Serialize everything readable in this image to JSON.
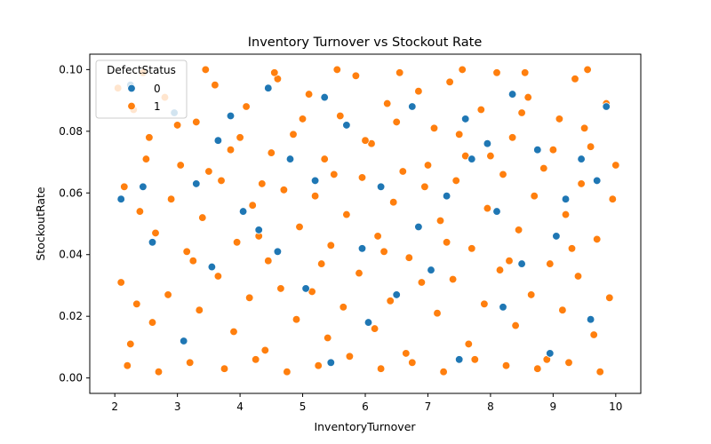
{
  "chart_data": {
    "type": "scatter",
    "title": "Inventory Turnover vs Stockout Rate",
    "xlabel": "InventoryTurnover",
    "ylabel": "StockoutRate",
    "xlim": [
      1.6,
      10.4
    ],
    "ylim": [
      -0.005,
      0.105
    ],
    "x_ticks": [
      2,
      3,
      4,
      5,
      6,
      7,
      8,
      9,
      10
    ],
    "y_ticks": [
      0.0,
      0.02,
      0.04,
      0.06,
      0.08,
      0.1
    ],
    "x_tick_labels": [
      "2",
      "3",
      "4",
      "5",
      "6",
      "7",
      "8",
      "9",
      "10"
    ],
    "y_tick_labels": [
      "0.00",
      "0.02",
      "0.04",
      "0.06",
      "0.08",
      "0.10"
    ],
    "grid": false,
    "legend": {
      "title": "DefectStatus",
      "position": "top-left",
      "entries": [
        {
          "label": "0",
          "color": "#1f77b4"
        },
        {
          "label": "1",
          "color": "#ff7f0e"
        }
      ]
    },
    "series": [
      {
        "name": "1",
        "color": "#ff7f0e",
        "points": [
          [
            2.05,
            0.094
          ],
          [
            2.3,
            0.087
          ],
          [
            2.55,
            0.078
          ],
          [
            2.8,
            0.091
          ],
          [
            3.05,
            0.069
          ],
          [
            3.3,
            0.083
          ],
          [
            3.6,
            0.095
          ],
          [
            3.85,
            0.074
          ],
          [
            4.1,
            0.088
          ],
          [
            4.35,
            0.063
          ],
          [
            4.6,
            0.097
          ],
          [
            4.85,
            0.079
          ],
          [
            5.1,
            0.092
          ],
          [
            5.35,
            0.071
          ],
          [
            5.6,
            0.085
          ],
          [
            5.85,
            0.098
          ],
          [
            6.1,
            0.076
          ],
          [
            6.35,
            0.089
          ],
          [
            6.6,
            0.067
          ],
          [
            6.85,
            0.093
          ],
          [
            7.1,
            0.081
          ],
          [
            7.35,
            0.096
          ],
          [
            7.6,
            0.072
          ],
          [
            7.85,
            0.087
          ],
          [
            8.1,
            0.099
          ],
          [
            8.35,
            0.078
          ],
          [
            8.6,
            0.091
          ],
          [
            8.85,
            0.068
          ],
          [
            9.1,
            0.084
          ],
          [
            9.35,
            0.097
          ],
          [
            9.6,
            0.075
          ],
          [
            9.85,
            0.089
          ],
          [
            2.15,
            0.062
          ],
          [
            2.4,
            0.054
          ],
          [
            2.65,
            0.047
          ],
          [
            2.9,
            0.058
          ],
          [
            3.15,
            0.041
          ],
          [
            3.4,
            0.052
          ],
          [
            3.7,
            0.064
          ],
          [
            3.95,
            0.044
          ],
          [
            4.2,
            0.056
          ],
          [
            4.45,
            0.038
          ],
          [
            4.7,
            0.061
          ],
          [
            4.95,
            0.049
          ],
          [
            5.2,
            0.059
          ],
          [
            5.45,
            0.043
          ],
          [
            5.7,
            0.053
          ],
          [
            5.95,
            0.065
          ],
          [
            6.2,
            0.046
          ],
          [
            6.45,
            0.057
          ],
          [
            6.7,
            0.039
          ],
          [
            6.95,
            0.062
          ],
          [
            7.2,
            0.051
          ],
          [
            7.45,
            0.064
          ],
          [
            7.7,
            0.042
          ],
          [
            7.95,
            0.055
          ],
          [
            8.2,
            0.066
          ],
          [
            8.45,
            0.048
          ],
          [
            8.7,
            0.059
          ],
          [
            8.95,
            0.037
          ],
          [
            9.2,
            0.053
          ],
          [
            9.45,
            0.063
          ],
          [
            9.7,
            0.045
          ],
          [
            9.95,
            0.058
          ],
          [
            2.1,
            0.031
          ],
          [
            2.35,
            0.024
          ],
          [
            2.6,
            0.018
          ],
          [
            2.85,
            0.027
          ],
          [
            3.1,
            0.012
          ],
          [
            3.35,
            0.022
          ],
          [
            3.65,
            0.033
          ],
          [
            3.9,
            0.015
          ],
          [
            4.15,
            0.026
          ],
          [
            4.4,
            0.009
          ],
          [
            4.65,
            0.029
          ],
          [
            4.9,
            0.019
          ],
          [
            5.15,
            0.028
          ],
          [
            5.4,
            0.013
          ],
          [
            5.65,
            0.023
          ],
          [
            5.9,
            0.034
          ],
          [
            6.15,
            0.016
          ],
          [
            6.4,
            0.025
          ],
          [
            6.65,
            0.008
          ],
          [
            6.9,
            0.031
          ],
          [
            7.15,
            0.021
          ],
          [
            7.4,
            0.032
          ],
          [
            7.65,
            0.011
          ],
          [
            7.9,
            0.024
          ],
          [
            8.15,
            0.035
          ],
          [
            8.4,
            0.017
          ],
          [
            8.65,
            0.027
          ],
          [
            8.9,
            0.006
          ],
          [
            9.15,
            0.022
          ],
          [
            9.4,
            0.033
          ],
          [
            9.65,
            0.014
          ],
          [
            9.9,
            0.026
          ],
          [
            2.2,
            0.004
          ],
          [
            2.7,
            0.002
          ],
          [
            3.2,
            0.005
          ],
          [
            3.75,
            0.003
          ],
          [
            4.25,
            0.006
          ],
          [
            4.75,
            0.002
          ],
          [
            5.25,
            0.004
          ],
          [
            5.75,
            0.007
          ],
          [
            6.25,
            0.003
          ],
          [
            6.75,
            0.005
          ],
          [
            7.25,
            0.002
          ],
          [
            7.75,
            0.006
          ],
          [
            8.25,
            0.004
          ],
          [
            8.75,
            0.003
          ],
          [
            9.25,
            0.005
          ],
          [
            9.75,
            0.002
          ],
          [
            2.5,
            0.071
          ],
          [
            3.0,
            0.082
          ],
          [
            3.5,
            0.067
          ],
          [
            4.0,
            0.078
          ],
          [
            4.5,
            0.073
          ],
          [
            5.0,
            0.084
          ],
          [
            5.5,
            0.066
          ],
          [
            6.0,
            0.077
          ],
          [
            6.5,
            0.083
          ],
          [
            7.0,
            0.069
          ],
          [
            7.5,
            0.079
          ],
          [
            8.0,
            0.072
          ],
          [
            8.5,
            0.086
          ],
          [
            9.0,
            0.074
          ],
          [
            9.5,
            0.081
          ],
          [
            10.0,
            0.069
          ],
          [
            2.25,
            0.011
          ],
          [
            3.25,
            0.038
          ],
          [
            4.3,
            0.046
          ],
          [
            5.3,
            0.037
          ],
          [
            6.3,
            0.041
          ],
          [
            7.3,
            0.044
          ],
          [
            8.3,
            0.038
          ],
          [
            9.3,
            0.042
          ],
          [
            2.45,
            0.099
          ],
          [
            3.45,
            0.1
          ],
          [
            4.55,
            0.099
          ],
          [
            5.55,
            0.1
          ],
          [
            6.55,
            0.099
          ],
          [
            7.55,
            0.1
          ],
          [
            8.55,
            0.099
          ],
          [
            9.55,
            0.1
          ]
        ]
      },
      {
        "name": "0",
        "color": "#1f77b4",
        "points": [
          [
            2.1,
            0.058
          ],
          [
            2.25,
            0.095
          ],
          [
            2.6,
            0.044
          ],
          [
            2.95,
            0.086
          ],
          [
            3.3,
            0.063
          ],
          [
            3.55,
            0.036
          ],
          [
            3.85,
            0.085
          ],
          [
            4.05,
            0.054
          ],
          [
            4.3,
            0.048
          ],
          [
            4.45,
            0.094
          ],
          [
            4.8,
            0.071
          ],
          [
            5.05,
            0.029
          ],
          [
            5.2,
            0.064
          ],
          [
            5.45,
            0.005
          ],
          [
            5.7,
            0.082
          ],
          [
            5.95,
            0.042
          ],
          [
            6.25,
            0.062
          ],
          [
            6.5,
            0.027
          ],
          [
            6.75,
            0.088
          ],
          [
            7.05,
            0.035
          ],
          [
            7.3,
            0.059
          ],
          [
            7.5,
            0.006
          ],
          [
            7.7,
            0.071
          ],
          [
            7.95,
            0.076
          ],
          [
            8.1,
            0.054
          ],
          [
            8.35,
            0.092
          ],
          [
            8.5,
            0.037
          ],
          [
            8.75,
            0.074
          ],
          [
            8.95,
            0.008
          ],
          [
            9.2,
            0.058
          ],
          [
            9.45,
            0.071
          ],
          [
            9.7,
            0.064
          ],
          [
            9.85,
            0.088
          ],
          [
            2.45,
            0.062
          ],
          [
            3.1,
            0.012
          ],
          [
            3.65,
            0.077
          ],
          [
            4.6,
            0.041
          ],
          [
            5.35,
            0.091
          ],
          [
            6.05,
            0.018
          ],
          [
            6.85,
            0.049
          ],
          [
            7.6,
            0.084
          ],
          [
            8.2,
            0.023
          ],
          [
            9.05,
            0.046
          ],
          [
            9.6,
            0.019
          ]
        ]
      }
    ]
  }
}
